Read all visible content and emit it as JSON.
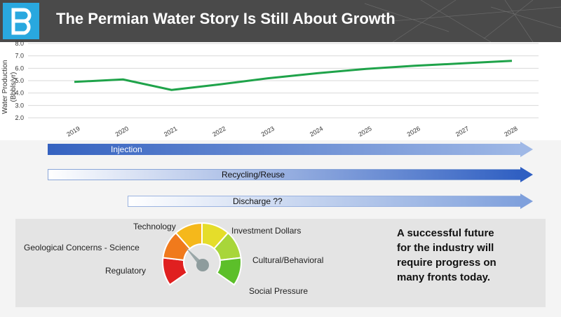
{
  "header": {
    "title": "The Permian Water Story Is Still About Growth",
    "logo_icon": "b-logo-icon"
  },
  "chart_data": {
    "type": "line",
    "ylabel": "Water Production\n(Bbbls/yr)",
    "ylim": [
      2.0,
      8.0
    ],
    "yticks": [
      "8.0",
      "7.0",
      "6.0",
      "5.0",
      "4.0",
      "3.0",
      "2.0"
    ],
    "categories": [
      "2019",
      "2020",
      "2021",
      "2022",
      "2023",
      "2024",
      "2025",
      "2026",
      "2027",
      "2028"
    ],
    "series": [
      {
        "values": [
          4.9,
          5.1,
          4.25,
          4.7,
          5.2,
          5.6,
          5.95,
          6.2,
          6.4,
          6.6
        ],
        "color": "#1fa34a"
      }
    ],
    "grid": true
  },
  "arrows": [
    {
      "label": "Injection",
      "color": "#3a6bc4"
    },
    {
      "label": "Recycling/Reuse",
      "color": "#3a6bc4"
    },
    {
      "label": "Discharge ??",
      "color": "#6f95d6"
    }
  ],
  "gauge": {
    "labels": {
      "technology": "Technology",
      "investment": "Investment Dollars",
      "geological": "Geological Concerns - Science",
      "cultural": "Cultural/Behavioral",
      "regulatory": "Regulatory",
      "social": "Social Pressure"
    },
    "segment_colors": [
      "#e02020",
      "#f07a1c",
      "#f5b81b",
      "#e5dd2a",
      "#a8d63a",
      "#5cbf2a"
    ]
  },
  "callout": "A successful future\nfor the industry will\nrequire progress on\nmany fronts today."
}
